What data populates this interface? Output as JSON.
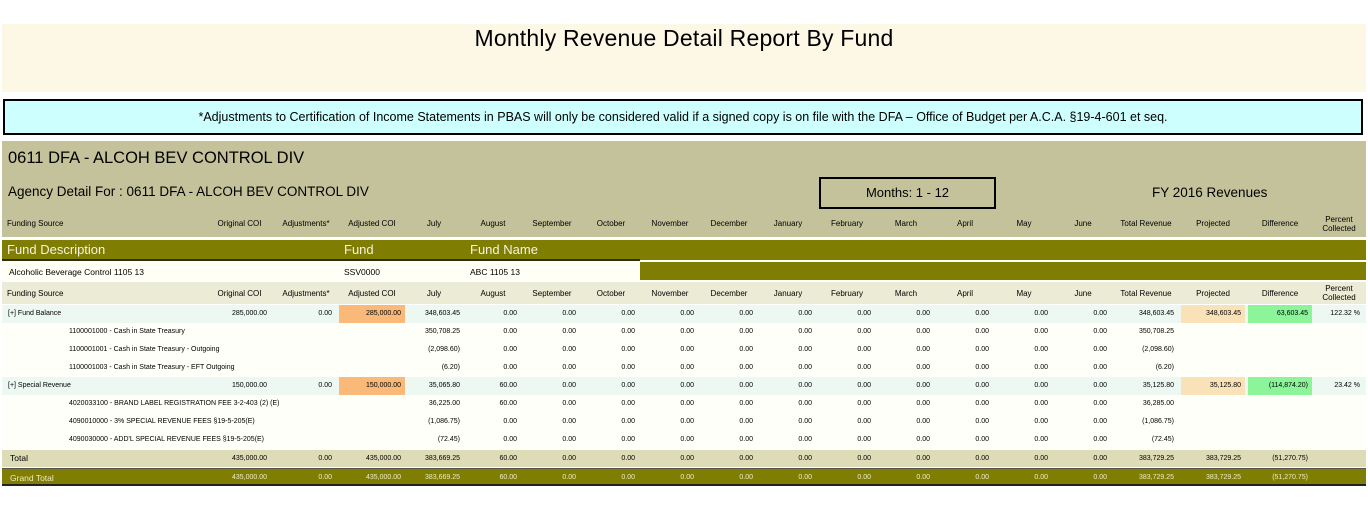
{
  "report": {
    "title": "Monthly Revenue  Detail Report By Fund",
    "notice": "*Adjustments to Certification of Income Statements in PBAS will only be considered valid if a signed copy is on file with the DFA – Office of Budget per A.C.A. §19-4-601 et seq."
  },
  "agency": {
    "title": "0611 DFA - ALCOH BEV CONTROL DIV",
    "detail": "Agency Detail For : 0611 DFA - ALCOH BEV CONTROL DIV",
    "months": "Months: 1 - 12",
    "fy": "FY 2016 Revenues"
  },
  "columns": {
    "source": "Funding Source",
    "orig": "Original COI",
    "adj": "Adjustments*",
    "adjcoi": "Adjusted COI",
    "jul": "July",
    "aug": "August",
    "sep": "September",
    "oct": "October",
    "nov": "November",
    "dec": "December",
    "jan": "January",
    "feb": "February",
    "mar": "March",
    "apr": "April",
    "may": "May",
    "jun": "June",
    "total": "Total Revenue",
    "proj": "Projected",
    "diff": "Difference",
    "pct": "Percent Collected"
  },
  "fund": {
    "desc_label": "Fund Description",
    "fund_label": "Fund",
    "name_label": "Fund Name",
    "desc": "Alcoholic Beverage Control 1105 13",
    "fund": "SSV0000",
    "name": "ABC 1105 13"
  },
  "rows": {
    "fb": {
      "label": "[+] Fund Balance",
      "orig": "285,000.00",
      "adj": "0.00",
      "adjcoi": "285,000.00",
      "jul": "348,603.45",
      "aug": "0.00",
      "sep": "0.00",
      "oct": "0.00",
      "nov": "0.00",
      "dec": "0.00",
      "jan": "0.00",
      "feb": "0.00",
      "mar": "0.00",
      "apr": "0.00",
      "may": "0.00",
      "jun": "0.00",
      "total": "348,603.45",
      "proj": "348,603.45",
      "diff": "63,603.45",
      "pct": "122.32 %"
    },
    "fb1": {
      "label": "1100001000 - Cash in State Treasury",
      "jul": "350,708.25",
      "aug": "0.00",
      "sep": "0.00",
      "oct": "0.00",
      "nov": "0.00",
      "dec": "0.00",
      "jan": "0.00",
      "feb": "0.00",
      "mar": "0.00",
      "apr": "0.00",
      "may": "0.00",
      "jun": "0.00",
      "total": "350,708.25"
    },
    "fb2": {
      "label": "1100001001 - Cash in State Treasury - Outgoing",
      "jul": "(2,098.60)",
      "aug": "0.00",
      "sep": "0.00",
      "oct": "0.00",
      "nov": "0.00",
      "dec": "0.00",
      "jan": "0.00",
      "feb": "0.00",
      "mar": "0.00",
      "apr": "0.00",
      "may": "0.00",
      "jun": "0.00",
      "total": "(2,098.60)"
    },
    "fb3": {
      "label": "1100001003 - Cash in State Treasury - EFT Outgoing",
      "jul": "(6.20)",
      "aug": "0.00",
      "sep": "0.00",
      "oct": "0.00",
      "nov": "0.00",
      "dec": "0.00",
      "jan": "0.00",
      "feb": "0.00",
      "mar": "0.00",
      "apr": "0.00",
      "may": "0.00",
      "jun": "0.00",
      "total": "(6.20)"
    },
    "sr": {
      "label": "[+] Special Revenue",
      "orig": "150,000.00",
      "adj": "0.00",
      "adjcoi": "150,000.00",
      "jul": "35,065.80",
      "aug": "60.00",
      "sep": "0.00",
      "oct": "0.00",
      "nov": "0.00",
      "dec": "0.00",
      "jan": "0.00",
      "feb": "0.00",
      "mar": "0.00",
      "apr": "0.00",
      "may": "0.00",
      "jun": "0.00",
      "total": "35,125.80",
      "proj": "35,125.80",
      "diff": "(114,874.20)",
      "pct": "23.42 %"
    },
    "sr1": {
      "label": "4020033100 - BRAND LABEL REGISTRATION FEE 3-2-403 (2) (E)",
      "jul": "36,225.00",
      "aug": "60.00",
      "sep": "0.00",
      "oct": "0.00",
      "nov": "0.00",
      "dec": "0.00",
      "jan": "0.00",
      "feb": "0.00",
      "mar": "0.00",
      "apr": "0.00",
      "may": "0.00",
      "jun": "0.00",
      "total": "36,285.00"
    },
    "sr2": {
      "label": "4090010000 - 3% SPECIAL REVENUE FEES §19-5-205(E)",
      "jul": "(1,086.75)",
      "aug": "0.00",
      "sep": "0.00",
      "oct": "0.00",
      "nov": "0.00",
      "dec": "0.00",
      "jan": "0.00",
      "feb": "0.00",
      "mar": "0.00",
      "apr": "0.00",
      "may": "0.00",
      "jun": "0.00",
      "total": "(1,086.75)"
    },
    "sr3": {
      "label": "4090030000 - ADD'L SPECIAL REVENUE FEES §19-5-205(E)",
      "jul": "(72.45)",
      "aug": "0.00",
      "sep": "0.00",
      "oct": "0.00",
      "nov": "0.00",
      "dec": "0.00",
      "jan": "0.00",
      "feb": "0.00",
      "mar": "0.00",
      "apr": "0.00",
      "may": "0.00",
      "jun": "0.00",
      "total": "(72.45)"
    },
    "total": {
      "label": "Total",
      "orig": "435,000.00",
      "adj": "0.00",
      "adjcoi": "435,000.00",
      "jul": "383,669.25",
      "aug": "60.00",
      "sep": "0.00",
      "oct": "0.00",
      "nov": "0.00",
      "dec": "0.00",
      "jan": "0.00",
      "feb": "0.00",
      "mar": "0.00",
      "apr": "0.00",
      "may": "0.00",
      "jun": "0.00",
      "total": "383,729.25",
      "proj": "383,729.25",
      "diff": "(51,270.75)"
    },
    "grand": {
      "label": "Grand Total",
      "orig": "435,000.00",
      "adj": "0.00",
      "adjcoi": "435,000.00",
      "jul": "383,669.25",
      "aug": "60.00",
      "sep": "0.00",
      "oct": "0.00",
      "nov": "0.00",
      "dec": "0.00",
      "jan": "0.00",
      "feb": "0.00",
      "mar": "0.00",
      "apr": "0.00",
      "may": "0.00",
      "jun": "0.00",
      "total": "383,729.25",
      "proj": "383,729.25",
      "diff": "(51,270.75)"
    }
  },
  "colors": {
    "title_band": "#fdf7e6",
    "notice_bg": "#ccfffe",
    "agency_band": "#c3c29a",
    "fund_band": "#807e02",
    "highlight_adjusted_coi": "#fab978",
    "highlight_projected": "#f9e2b8",
    "highlight_difference": "#8cf59a"
  }
}
